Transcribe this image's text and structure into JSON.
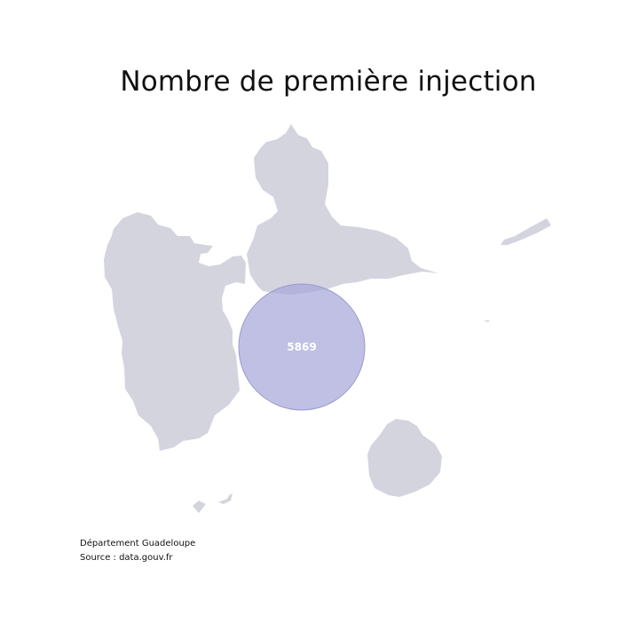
{
  "title": "Nombre de première injection",
  "marker": {
    "value": "5869",
    "color": "#a7a7d9"
  },
  "caption": {
    "line1": "Département Guadeloupe",
    "line2": "Source : data.gouv.fr"
  },
  "colors": {
    "land": "#d4d4df",
    "bubble": "#a7a7d9"
  }
}
